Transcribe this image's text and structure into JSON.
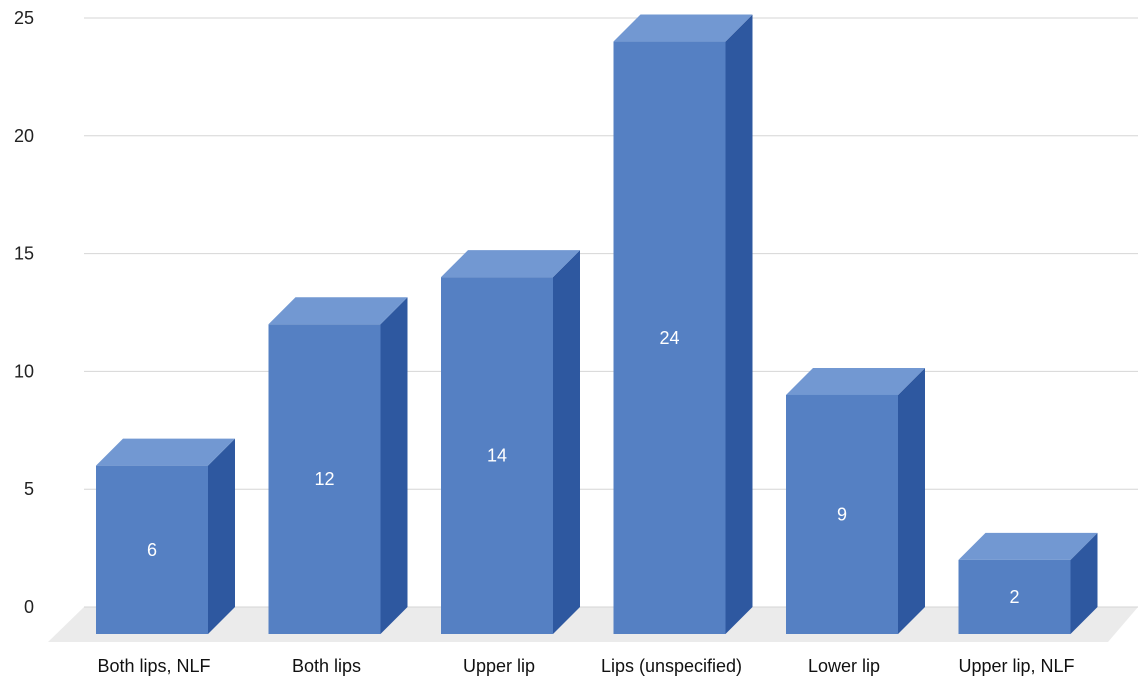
{
  "chart_data": {
    "type": "bar",
    "style": "3d-column",
    "title": "",
    "xlabel": "",
    "ylabel": "",
    "categories": [
      "Both lips, NLF",
      "Both lips",
      "Upper lip",
      "Lips (unspecified)",
      "Lower lip",
      "Upper lip, NLF"
    ],
    "values": [
      6,
      12,
      14,
      24,
      9,
      2
    ],
    "data_labels": [
      "6",
      "12",
      "14",
      "24",
      "9",
      "2"
    ],
    "ylim": [
      0,
      25
    ],
    "yticks": [
      0,
      5,
      10,
      15,
      20,
      25
    ],
    "grid": true,
    "legend": "none",
    "colors": {
      "front": "#5580c3",
      "top": "#7298d2",
      "side": "#2e58a0",
      "floor": "#ebebeb",
      "grid": "#d6d6d6"
    }
  }
}
